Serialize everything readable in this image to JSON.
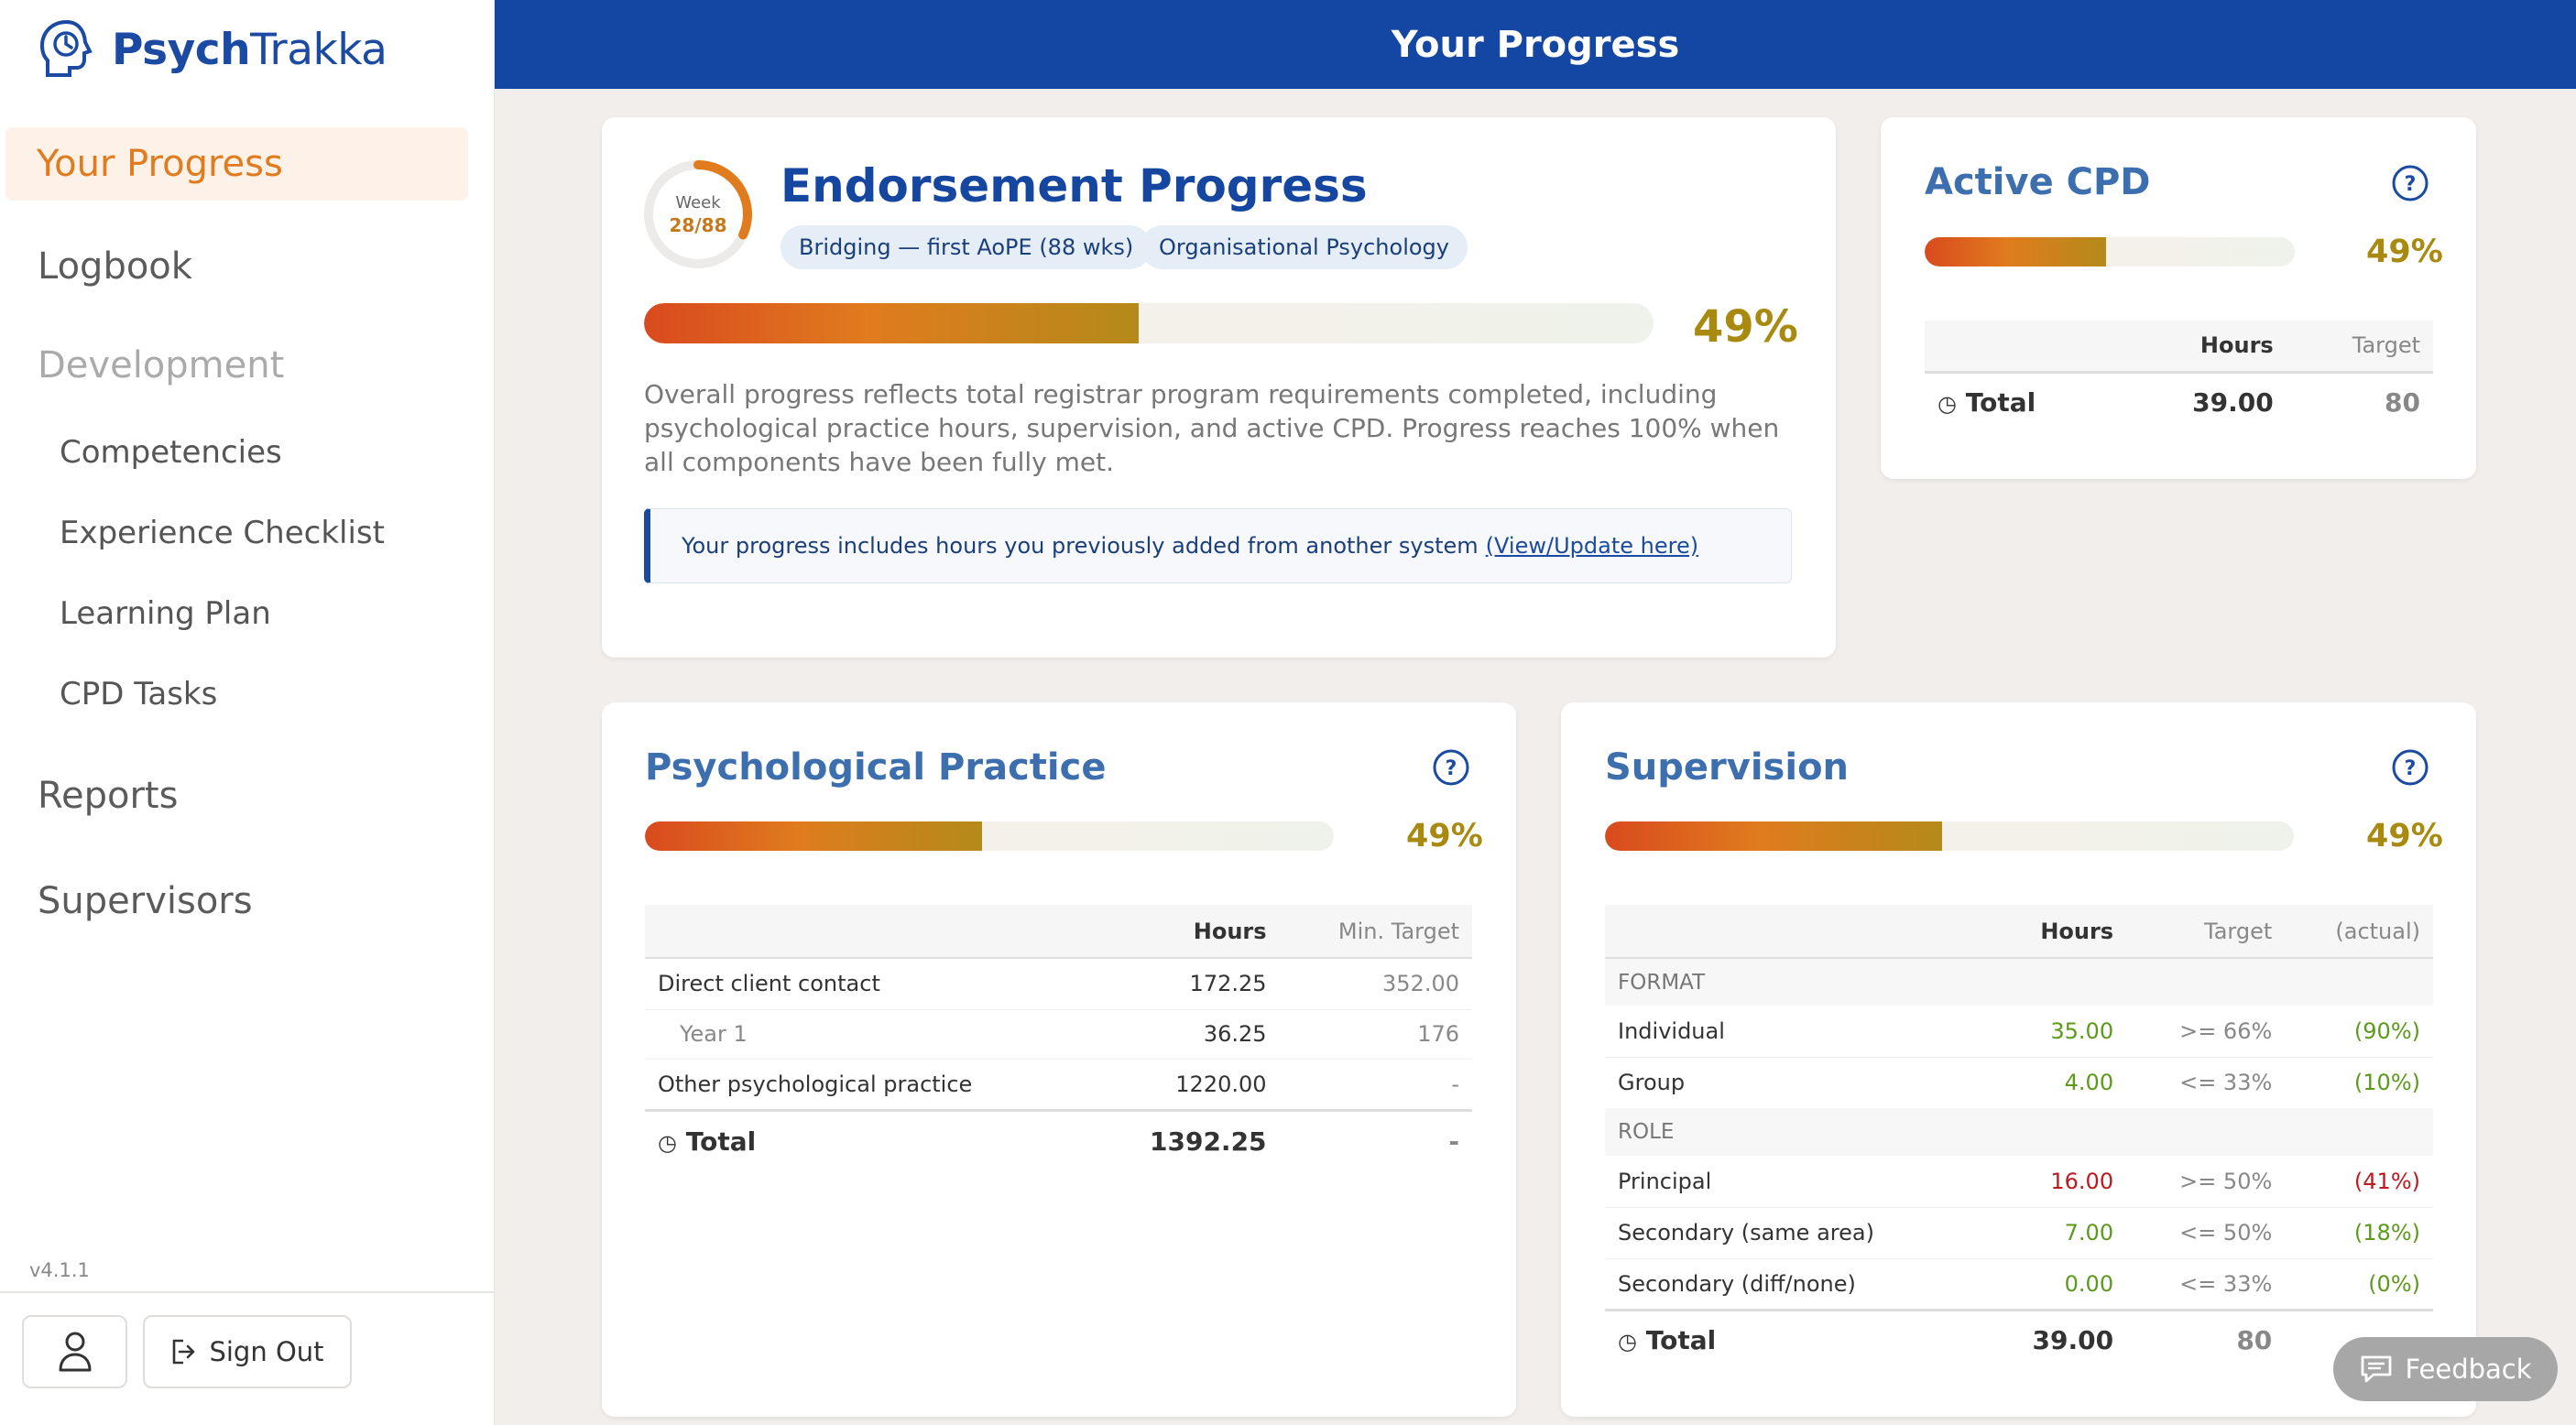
{
  "app": {
    "name_bold": "Psych",
    "name_light": "Trakka",
    "version": "v4.1.1"
  },
  "header": {
    "title": "Your Progress"
  },
  "sidebar": {
    "active": "Your Progress",
    "items": [
      {
        "label": "Logbook"
      },
      {
        "label": "Development"
      },
      {
        "label": "Competencies"
      },
      {
        "label": "Experience Checklist"
      },
      {
        "label": "Learning Plan"
      },
      {
        "label": "CPD Tasks"
      },
      {
        "label": "Reports"
      },
      {
        "label": "Supervisors"
      }
    ],
    "sign_out": "Sign Out"
  },
  "endorsement": {
    "title": "Endorsement Progress",
    "ring_label": "Week",
    "ring_value": "28/88",
    "ring_fraction": 0.318,
    "chips": [
      "Bridging — first AoPE (88 wks)",
      "Organisational Psychology"
    ],
    "progress": 0.49,
    "percent": "49%",
    "description": "Overall progress reflects total registrar program requirements completed, including psychological practice hours, supervision, and active CPD. Progress reaches 100% when all components have been fully met.",
    "notice": "Your progress includes hours you previously added from another system",
    "notice_link": "(View/Update here)"
  },
  "cpd": {
    "title": "Active CPD",
    "progress": 0.49,
    "percent": "49%",
    "col_hours": "Hours",
    "col_target": "Target",
    "total_label": "Total",
    "total_hours": "39.00",
    "total_target": "80"
  },
  "practice": {
    "title": "Psychological Practice",
    "progress": 0.49,
    "percent": "49%",
    "col_hours": "Hours",
    "col_target": "Min. Target",
    "rows": [
      {
        "label": "Direct client contact",
        "hours": "172.25",
        "target": "352.00"
      },
      {
        "label": "Year 1",
        "hours": "36.25",
        "target": "176"
      },
      {
        "label": "Other psychological practice",
        "hours": "1220.00",
        "target": "-"
      }
    ],
    "total_label": "Total",
    "total_hours": "1392.25",
    "total_target": "-"
  },
  "supervision": {
    "title": "Supervision",
    "progress": 0.49,
    "percent": "49%",
    "col_hours": "Hours",
    "col_target": "Target",
    "col_actual": "(actual)",
    "section_format": "FORMAT",
    "section_role": "ROLE",
    "format_rows": [
      {
        "label": "Individual",
        "hours": "35.00",
        "target": ">= 66%",
        "actual": "(90%)",
        "status": "good"
      },
      {
        "label": "Group",
        "hours": "4.00",
        "target": "<= 33%",
        "actual": "(10%)",
        "status": "good"
      }
    ],
    "role_rows": [
      {
        "label": "Principal",
        "hours": "16.00",
        "target": ">= 50%",
        "actual": "(41%)",
        "status": "bad"
      },
      {
        "label": "Secondary (same area)",
        "hours": "7.00",
        "target": "<= 50%",
        "actual": "(18%)",
        "status": "good"
      },
      {
        "label": "Secondary (diff/none)",
        "hours": "0.00",
        "target": "<= 33%",
        "actual": "(0%)",
        "status": "good"
      }
    ],
    "total_label": "Total",
    "total_hours": "39.00",
    "total_target": "80"
  },
  "feedback": {
    "label": "Feedback"
  },
  "colors": {
    "brand": "#1446a3",
    "accent": "#e07b1e",
    "good": "#5c9a1c",
    "bad": "#c0181e",
    "percent": "#a88a10"
  }
}
